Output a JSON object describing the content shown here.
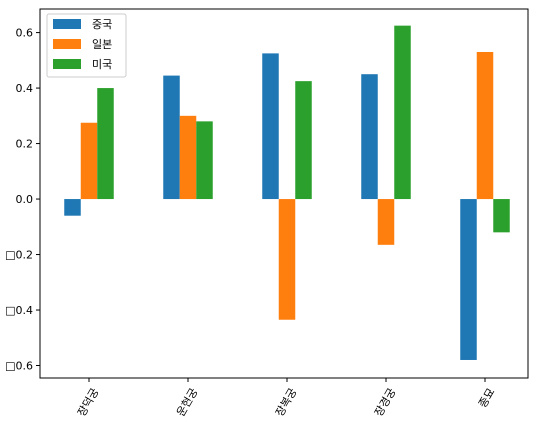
{
  "chart_data": {
    "type": "bar",
    "title": "",
    "xlabel": "",
    "ylabel": "",
    "categories": [
      "장덕궁",
      "운현궁",
      "장복궁",
      "장경궁",
      "종묘"
    ],
    "series": [
      {
        "name": "중국",
        "color": "#1f77b4",
        "values": [
          -0.06,
          0.445,
          0.525,
          0.45,
          -0.58
        ]
      },
      {
        "name": "일본",
        "color": "#ff7f0e",
        "values": [
          0.275,
          0.3,
          -0.435,
          -0.165,
          0.53
        ]
      },
      {
        "name": "미국",
        "color": "#2ca02c",
        "values": [
          0.4,
          0.28,
          0.425,
          0.625,
          -0.12
        ]
      }
    ],
    "ylim": [
      -0.645,
      0.685
    ],
    "yticks": [
      0.6,
      0.4,
      0.2,
      0.0,
      -0.2,
      -0.4,
      -0.6
    ],
    "ytick_labels": [
      "0.6",
      "0.4",
      "0.2",
      "0.0",
      "□0.2",
      "□0.4",
      "□0.6"
    ],
    "grid": false,
    "legend_position": "top-left",
    "xtick_rotation_deg": -60
  }
}
